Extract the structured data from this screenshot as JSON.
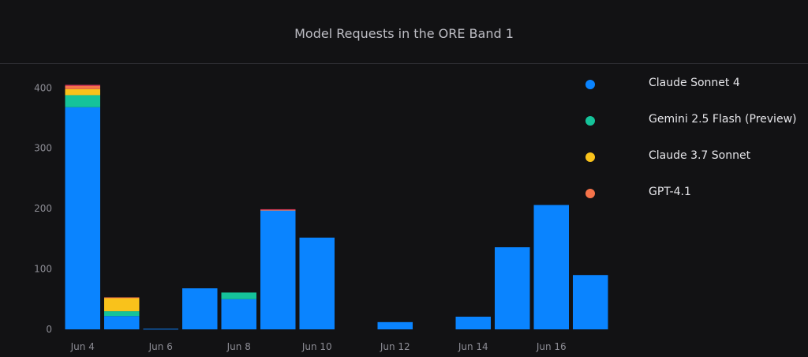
{
  "title": "Model Requests in the ORE Band 1",
  "chart_data": {
    "type": "bar",
    "stacked": true,
    "categories": [
      "Jun 4",
      "Jun 5",
      "Jun 6",
      "Jun 7",
      "Jun 8",
      "Jun 9",
      "Jun 10",
      "Jun 11",
      "Jun 12",
      "Jun 13",
      "Jun 14",
      "Jun 15",
      "Jun 16",
      "Jun 17"
    ],
    "x_tick_labels": [
      "Jun 4",
      "Jun 6",
      "Jun 8",
      "Jun 10",
      "Jun 12",
      "Jun 14",
      "Jun 16"
    ],
    "y_tick_labels": [
      "0",
      "100",
      "200",
      "300",
      "400"
    ],
    "ylim": [
      0,
      420
    ],
    "legend_position": "right",
    "grid": false,
    "series": [
      {
        "name": "Claude Sonnet 4",
        "color": "#0a84ff",
        "values": [
          368,
          22,
          1,
          68,
          50,
          197,
          152,
          0,
          12,
          0,
          21,
          136,
          206,
          90
        ]
      },
      {
        "name": "Gemini 2.5 Flash (Preview)",
        "color": "#15c39a",
        "values": [
          20,
          8,
          0,
          0,
          11,
          0,
          0,
          0,
          0,
          0,
          0,
          0,
          0,
          0
        ]
      },
      {
        "name": "Claude 3.7 Sonnet",
        "color": "#f9c21b",
        "values": [
          10,
          22,
          0,
          0,
          0,
          0,
          0,
          0,
          0,
          0,
          0,
          0,
          0,
          0
        ]
      },
      {
        "name": "GPT-4.1",
        "color": "#f5734a",
        "values": [
          5,
          1,
          0,
          0,
          0,
          1,
          0,
          0,
          0,
          0,
          0,
          0,
          0,
          0
        ]
      },
      {
        "name": "",
        "color": "#d93a5a",
        "values": [
          2,
          0,
          0,
          0,
          0,
          1,
          0,
          0,
          0,
          0,
          0,
          0,
          0,
          0
        ]
      }
    ]
  }
}
